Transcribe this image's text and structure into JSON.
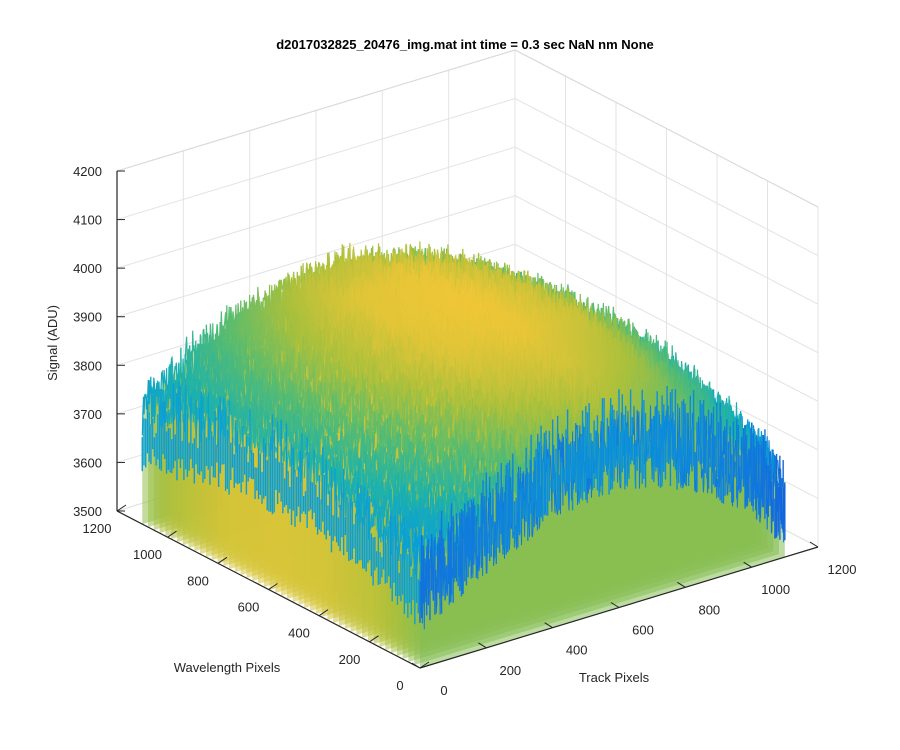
{
  "chart_data": {
    "type": "surface",
    "title": "d2017032825_20476_img.mat int time = 0.3 sec  NaN nm None",
    "xlabel": "Track Pixels",
    "ylabel": "Wavelength Pixels",
    "zlabel": "Signal (ADU)",
    "xlim": [
      0,
      1200
    ],
    "ylim": [
      0,
      1200
    ],
    "zlim": [
      3500,
      4200
    ],
    "xticks": [
      "0",
      "200",
      "400",
      "600",
      "800",
      "1000",
      "1200"
    ],
    "yticks": [
      "0",
      "200",
      "400",
      "600",
      "800",
      "1000",
      "1200"
    ],
    "zticks": [
      "3500",
      "3600",
      "3700",
      "3800",
      "3900",
      "4000",
      "4100",
      "4200"
    ],
    "grid": true,
    "colormap": "parula",
    "colors": {
      "low": "#1b2fc9",
      "mid_low": "#0a9fd6",
      "mid": "#36b89b",
      "mid_high": "#8dc043",
      "high": "#f7c736"
    },
    "surface_profile": {
      "x": [
        0,
        200,
        400,
        600,
        800,
        1000,
        1100
      ],
      "y": [
        0,
        200,
        400,
        600,
        800,
        1000,
        1100
      ],
      "z": [
        [
          3720,
          3800,
          3870,
          3890,
          3850,
          3760,
          3660
        ],
        [
          3760,
          3850,
          3910,
          3930,
          3890,
          3800,
          3700
        ],
        [
          3790,
          3880,
          3940,
          3950,
          3920,
          3830,
          3730
        ],
        [
          3800,
          3890,
          3945,
          3955,
          3925,
          3840,
          3740
        ],
        [
          3790,
          3880,
          3940,
          3950,
          3915,
          3830,
          3730
        ],
        [
          3760,
          3850,
          3910,
          3920,
          3890,
          3800,
          3700
        ],
        [
          3740,
          3830,
          3880,
          3900,
          3860,
          3780,
          3680
        ]
      ],
      "noise_adu": 60
    }
  }
}
